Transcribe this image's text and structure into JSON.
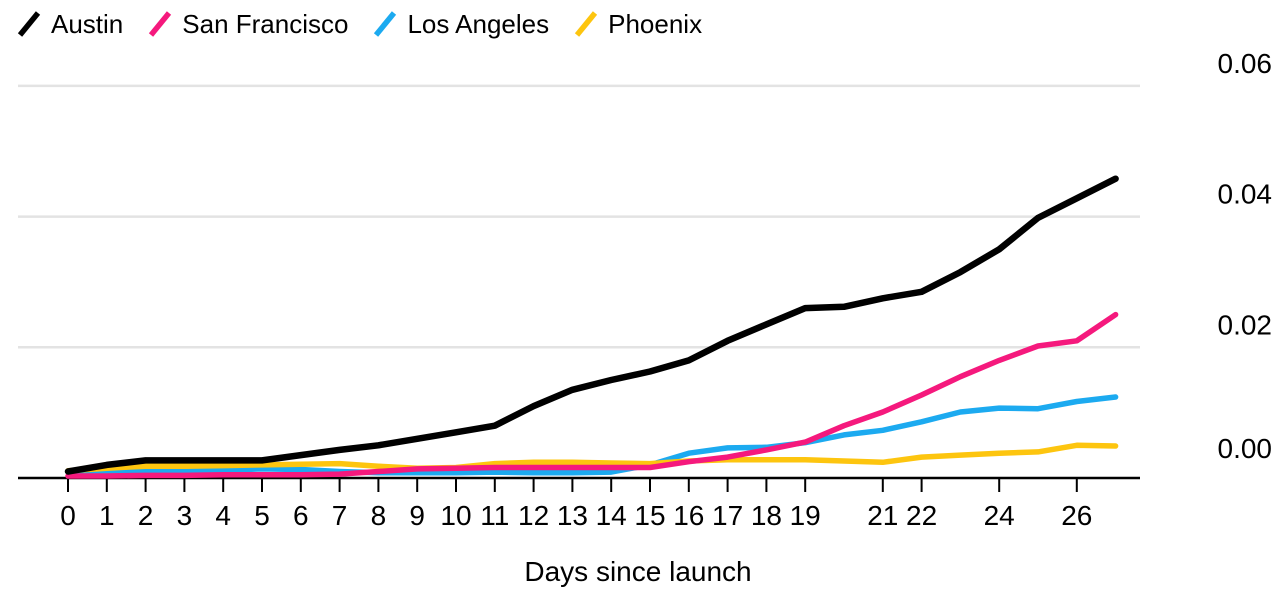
{
  "legend": [
    {
      "label": "Austin",
      "color": "#000000"
    },
    {
      "label": "San Francisco",
      "color": "#f5197d"
    },
    {
      "label": "Los Angeles",
      "color": "#1caaf0"
    },
    {
      "label": "Phoenix",
      "color": "#fdc50f"
    }
  ],
  "chart_data": {
    "type": "line",
    "title": "",
    "xlabel": "Days since launch",
    "ylabel": "",
    "x": [
      0,
      1,
      2,
      3,
      4,
      5,
      6,
      7,
      8,
      9,
      10,
      11,
      12,
      13,
      14,
      15,
      16,
      17,
      18,
      19,
      20,
      21,
      22,
      23,
      24,
      25,
      26,
      27
    ],
    "series": [
      {
        "name": "Austin",
        "color": "#000000",
        "values": [
          0.001,
          0.002,
          0.0027,
          0.0027,
          0.0027,
          0.0027,
          0.0035,
          0.0043,
          0.005,
          0.006,
          0.007,
          0.008,
          0.011,
          0.0135,
          0.015,
          0.0163,
          0.018,
          0.021,
          0.0235,
          0.026,
          0.0262,
          0.0275,
          0.0285,
          0.0315,
          0.035,
          0.0398,
          0.0428,
          0.0458
        ]
      },
      {
        "name": "San Francisco",
        "color": "#f5197d",
        "values": [
          0.0003,
          0.0003,
          0.0004,
          0.0004,
          0.0005,
          0.0005,
          0.0005,
          0.0006,
          0.001,
          0.0014,
          0.0015,
          0.0016,
          0.0016,
          0.0016,
          0.0016,
          0.0016,
          0.0025,
          0.0032,
          0.0043,
          0.0055,
          0.008,
          0.0101,
          0.0127,
          0.0155,
          0.018,
          0.0202,
          0.021,
          0.025
        ]
      },
      {
        "name": "Los Angeles",
        "color": "#1caaf0",
        "values": [
          0.001,
          0.001,
          0.001,
          0.001,
          0.0012,
          0.0014,
          0.0013,
          0.001,
          0.0008,
          0.0008,
          0.0008,
          0.0009,
          0.0008,
          0.0008,
          0.0009,
          0.002,
          0.0038,
          0.0046,
          0.0047,
          0.0054,
          0.0066,
          0.0073,
          0.0086,
          0.0101,
          0.0107,
          0.0106,
          0.0117,
          0.0124
        ]
      },
      {
        "name": "Phoenix",
        "color": "#fdc50f",
        "values": [
          0.0011,
          0.0015,
          0.0018,
          0.0018,
          0.0019,
          0.002,
          0.0021,
          0.0022,
          0.0018,
          0.0015,
          0.0016,
          0.0022,
          0.0024,
          0.0024,
          0.0023,
          0.0022,
          0.0026,
          0.0028,
          0.0028,
          0.0028,
          0.0026,
          0.0024,
          0.0032,
          0.0035,
          0.0038,
          0.004,
          0.005,
          0.0049
        ]
      }
    ],
    "y_ticks": [
      0,
      0.02,
      0.04,
      0.06
    ],
    "y_tick_labels": [
      "0.00",
      "0.02",
      "0.04",
      "0.06"
    ],
    "x_tick_days": [
      0,
      1,
      2,
      3,
      4,
      5,
      6,
      7,
      8,
      9,
      10,
      11,
      12,
      13,
      14,
      15,
      16,
      17,
      18,
      19,
      21,
      22,
      24,
      26
    ],
    "ylim": [
      0,
      0.06
    ],
    "xlim": [
      0,
      27
    ],
    "grid": "horizontal",
    "y_axis_side": "right",
    "legend_position": "top-left"
  },
  "colors": {
    "background": "#ffffff",
    "gridline": "#e3e3e3",
    "axis": "#000000",
    "text": "#000000"
  }
}
